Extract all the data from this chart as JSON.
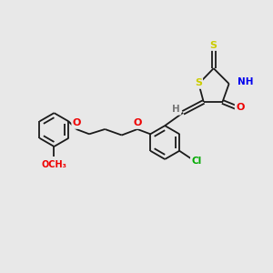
{
  "bg_color": "#e8e8e8",
  "bond_color": "#1a1a1a",
  "atom_colors": {
    "S": "#cccc00",
    "N": "#0000ee",
    "O": "#ee0000",
    "Cl": "#00aa00",
    "H": "#777777",
    "C": "#1a1a1a"
  },
  "lw": 1.3
}
